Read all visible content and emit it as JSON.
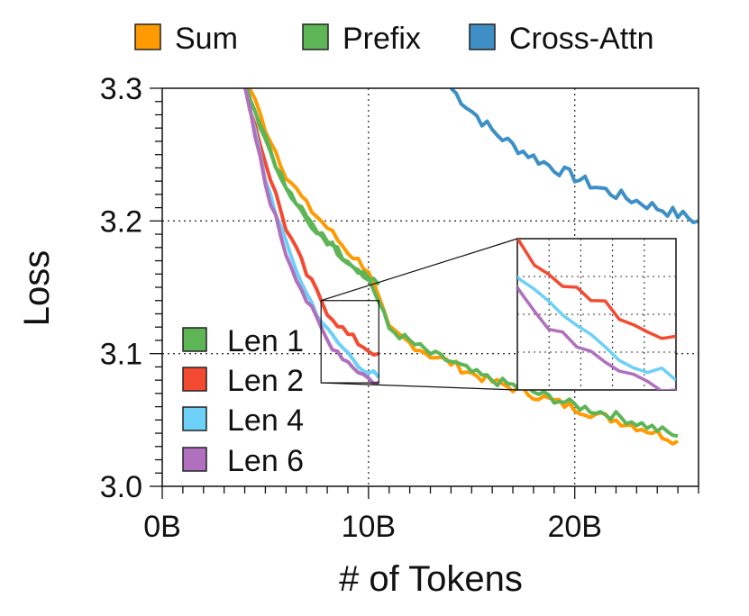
{
  "chart_data": {
    "type": "line",
    "xlabel": "# of Tokens",
    "ylabel": "Loss",
    "xlim": [
      0,
      26
    ],
    "ylim": [
      3.0,
      3.3
    ],
    "xticks": [
      0,
      10,
      20
    ],
    "xtick_labels": [
      "0B",
      "10B",
      "20B"
    ],
    "yticks": [
      3.0,
      3.1,
      3.2,
      3.3
    ],
    "ytick_labels": [
      "3.0",
      "3.1",
      "3.2",
      "3.3"
    ],
    "grid": "dotted at major ticks",
    "legends": {
      "top": [
        "Sum",
        "Prefix",
        "Cross-Attn"
      ],
      "left-bottom": [
        "Len 1",
        "Len 2",
        "Len 4",
        "Len 6"
      ]
    },
    "series": [
      {
        "name": "Cross-Attn",
        "color": "#3d8fc6",
        "x": [
          14,
          15,
          16,
          17,
          18,
          19,
          20,
          21,
          22,
          23,
          24,
          25,
          26
        ],
        "y": [
          3.3,
          3.283,
          3.268,
          3.257,
          3.248,
          3.24,
          3.233,
          3.226,
          3.22,
          3.215,
          3.21,
          3.205,
          3.2
        ]
      },
      {
        "name": "Sum",
        "color": "#ff9a00",
        "x": [
          4,
          5,
          6,
          7,
          8,
          9,
          10,
          11,
          12,
          13,
          14,
          15,
          16,
          17,
          18,
          19,
          20,
          21,
          22,
          23,
          24,
          25
        ],
        "y": [
          3.31,
          3.27,
          3.235,
          3.212,
          3.195,
          3.177,
          3.163,
          3.118,
          3.108,
          3.099,
          3.093,
          3.085,
          3.079,
          3.074,
          3.069,
          3.064,
          3.059,
          3.054,
          3.05,
          3.045,
          3.04,
          3.034
        ]
      },
      {
        "name": "Prefix",
        "color": "#5db555",
        "x": [
          4,
          5,
          6,
          7,
          8,
          9,
          10,
          11,
          12,
          13,
          14,
          15,
          16,
          17,
          18,
          19,
          20,
          21,
          22,
          23,
          24,
          25
        ],
        "y": [
          3.305,
          3.262,
          3.225,
          3.202,
          3.185,
          3.17,
          3.158,
          3.119,
          3.109,
          3.1,
          3.094,
          3.086,
          3.08,
          3.076,
          3.071,
          3.066,
          3.061,
          3.057,
          3.053,
          3.048,
          3.043,
          3.038
        ]
      },
      {
        "name": "Len 1",
        "color": "#5db555",
        "x": [
          4,
          5,
          6,
          7,
          8,
          9,
          10,
          10.5
        ],
        "y": [
          3.305,
          3.262,
          3.225,
          3.202,
          3.185,
          3.17,
          3.158,
          3.152
        ]
      },
      {
        "name": "Len 2",
        "color": "#f44a32",
        "x": [
          4,
          5,
          6,
          7,
          8,
          9,
          10,
          10.5
        ],
        "y": [
          3.3,
          3.245,
          3.195,
          3.16,
          3.132,
          3.114,
          3.103,
          3.1
        ]
      },
      {
        "name": "Len 4",
        "color": "#6cd0f7",
        "x": [
          4,
          5,
          6,
          7,
          8,
          9,
          10,
          10.5
        ],
        "y": [
          3.3,
          3.232,
          3.182,
          3.145,
          3.117,
          3.1,
          3.086,
          3.082
        ]
      },
      {
        "name": "Len 6",
        "color": "#b070bd",
        "x": [
          4,
          5,
          6,
          7,
          8,
          9,
          10,
          10.5
        ],
        "y": [
          3.3,
          3.228,
          3.176,
          3.14,
          3.11,
          3.094,
          3.081,
          3.078
        ]
      }
    ],
    "inset": {
      "xlim": [
        7.7,
        10.5
      ],
      "ylim": [
        3.078,
        3.14
      ],
      "description_type": "zoom",
      "grid": "dotted"
    }
  }
}
